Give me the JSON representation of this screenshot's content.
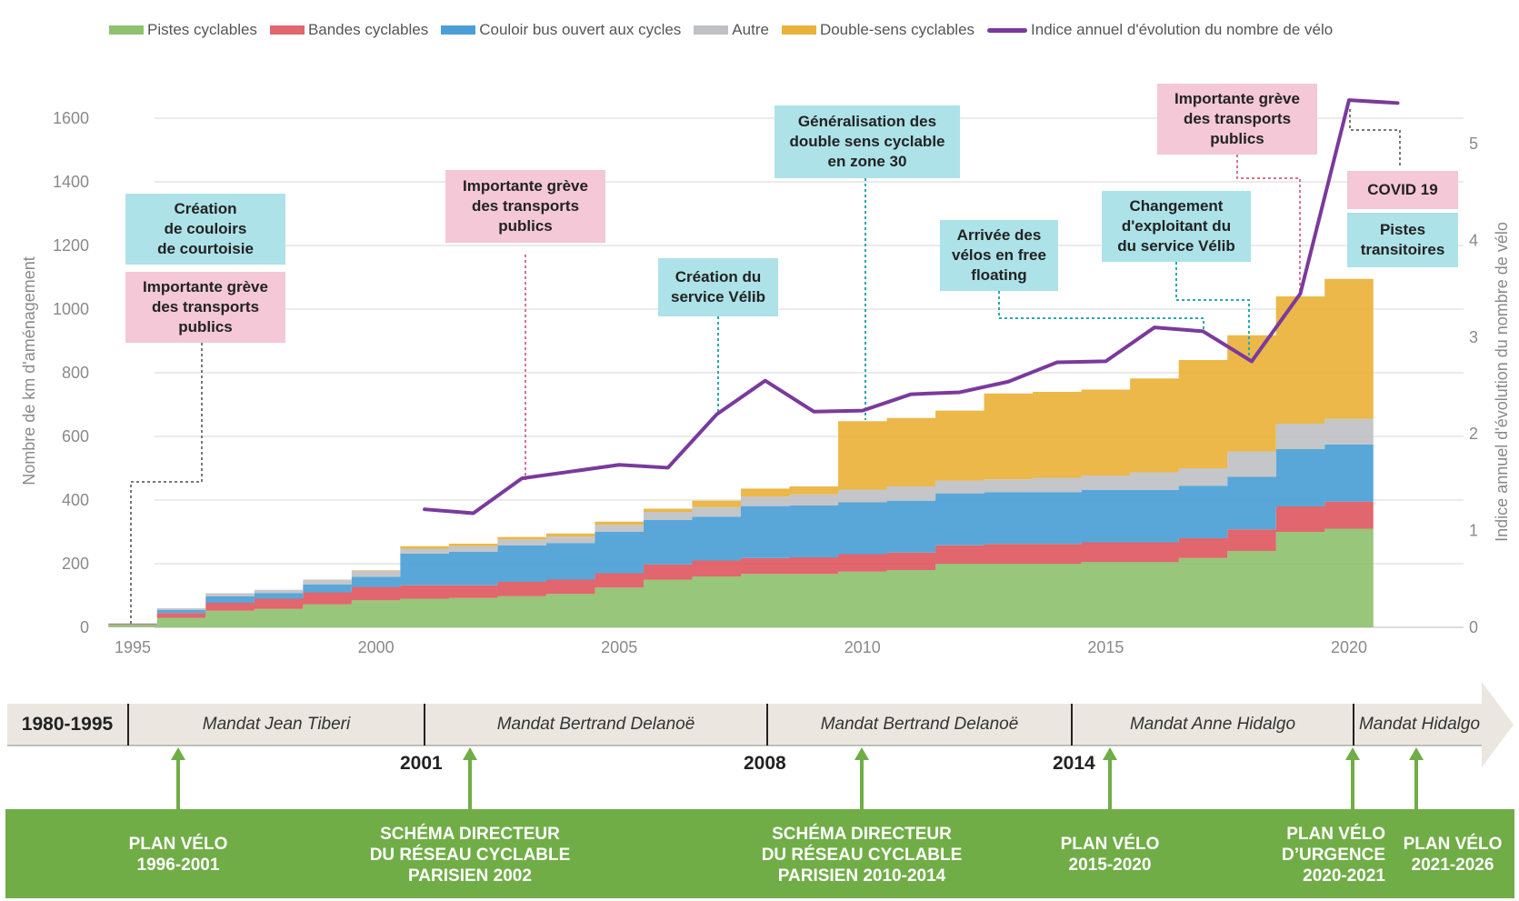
{
  "legend": {
    "pistes": "Pistes cyclables",
    "bandes": "Bandes cyclables",
    "couloir": "Couloir bus ouvert aux cycles",
    "autre": "Autre",
    "double": "Double-sens cyclables",
    "indice": "Indice annuel d'évolution du nombre de vélo"
  },
  "colors": {
    "pistes": "#8fc16f",
    "bandes": "#dc4b55",
    "couloir": "#4b9fd6",
    "autre": "#bfc1c4",
    "double": "#e9b23a",
    "indice": "#7a3a9c",
    "plan_band": "#70ad47",
    "timeline": "#ebe7e0"
  },
  "chart_data": {
    "type": "area",
    "step": true,
    "xlim": [
      1994.5,
      2021.5
    ],
    "ylim_left": [
      0,
      1700
    ],
    "ylim_right": [
      0,
      5.5
    ],
    "ylabel_left": "Nombre de km d'aménagement",
    "ylabel_right": "Indice annuel d'évolution du nombre de vélo",
    "x_ticks": [
      "1995",
      "2000",
      "2005",
      "2010",
      "2015",
      "2020"
    ],
    "y_ticks_left": [
      "0",
      "200",
      "400",
      "600",
      "800",
      "1000",
      "1200",
      "1400",
      "1600"
    ],
    "y_ticks_right": [
      "0",
      "1",
      "2",
      "3",
      "4",
      "5"
    ],
    "grid": true,
    "legend_position": "top",
    "years": [
      1995,
      1996,
      1997,
      1998,
      1999,
      2000,
      2001,
      2002,
      2003,
      2004,
      2005,
      2006,
      2007,
      2008,
      2009,
      2010,
      2011,
      2012,
      2013,
      2014,
      2015,
      2016,
      2017,
      2018,
      2019,
      2020
    ],
    "series": [
      {
        "name": "Pistes cyclables",
        "key": "pistes",
        "values": [
          8,
          30,
          52,
          58,
          72,
          85,
          90,
          92,
          98,
          105,
          125,
          150,
          160,
          168,
          168,
          175,
          180,
          200,
          200,
          200,
          205,
          205,
          218,
          240,
          300,
          310
        ]
      },
      {
        "name": "Bandes cyclables",
        "key": "bandes",
        "values": [
          2,
          15,
          25,
          32,
          38,
          42,
          42,
          40,
          45,
          45,
          45,
          48,
          50,
          50,
          52,
          55,
          55,
          58,
          62,
          62,
          62,
          62,
          62,
          68,
          80,
          85
        ]
      },
      {
        "name": "Couloir bus ouvert aux cycles",
        "key": "couloir",
        "values": [
          2,
          10,
          20,
          18,
          25,
          32,
          100,
          105,
          115,
          115,
          130,
          140,
          138,
          163,
          163,
          163,
          163,
          163,
          163,
          163,
          165,
          165,
          165,
          165,
          180,
          180
        ]
      },
      {
        "name": "Autre",
        "key": "autre",
        "values": [
          1,
          5,
          10,
          10,
          15,
          18,
          15,
          18,
          18,
          20,
          22,
          25,
          30,
          30,
          35,
          40,
          45,
          40,
          40,
          45,
          45,
          55,
          55,
          80,
          80,
          80
        ]
      },
      {
        "name": "Double-sens cyclables",
        "key": "double",
        "values": [
          0,
          0,
          0,
          0,
          0,
          2,
          8,
          8,
          8,
          10,
          10,
          10,
          20,
          25,
          25,
          215,
          215,
          220,
          270,
          270,
          270,
          295,
          340,
          365,
          400,
          440
        ]
      }
    ],
    "line": {
      "name": "Indice annuel d'évolution du nombre de vélo",
      "key": "indice",
      "x": [
        2001,
        2002,
        2003,
        2004,
        2005,
        2006,
        2007,
        2008,
        2009,
        2010,
        2011,
        2012,
        2013,
        2014,
        2015,
        2016,
        2017,
        2018,
        2019,
        2020,
        2021
      ],
      "y": [
        1.22,
        1.18,
        1.54,
        1.61,
        1.68,
        1.65,
        2.2,
        2.55,
        2.23,
        2.24,
        2.41,
        2.43,
        2.54,
        2.74,
        2.75,
        3.1,
        3.06,
        2.75,
        3.45,
        5.45,
        5.42
      ]
    }
  },
  "annotations": {
    "courtoisie": "Création\nde couloirs\nde courtoisie",
    "greve_1995": "Importante grève\ndes transports\npublics",
    "greve_2003": "Importante grève\ndes transports\npublics",
    "velib": "Création du\nservice Vélib",
    "double_sens": "Généralisation des\ndouble sens cyclable\nen zone 30",
    "free_floating": "Arrivée des\nvélos en free\nfloating",
    "changement": "Changement\nd'exploitant du\ndu service Vélib",
    "greve_2019": "Importante grève\ndes transports\npublics",
    "covid": "COVID 19",
    "pistes_transitoires": "Pistes\ntransitoires"
  },
  "timeline": {
    "lead": "1980-1995",
    "mandates": [
      "Mandat Jean Tiberi",
      "Mandat Bertrand Delanoë",
      "Mandat Bertrand Delanoë",
      "Mandat Anne Hidalgo",
      "Mandat Hidalgo"
    ],
    "years": [
      "2001",
      "2008",
      "2014"
    ]
  },
  "plans": [
    "PLAN VÉLO\n1996-2001",
    "SCHÉMA DIRECTEUR\nDU RÉSEAU CYCLABLE\nPARISIEN 2002",
    "SCHÉMA DIRECTEUR\nDU RÉSEAU CYCLABLE\nPARISIEN 2010-2014",
    "PLAN VÉLO\n2015-2020",
    "PLAN VÉLO\nD’URGENCE\n2020-2021",
    "PLAN VÉLO\n2021-2026"
  ]
}
